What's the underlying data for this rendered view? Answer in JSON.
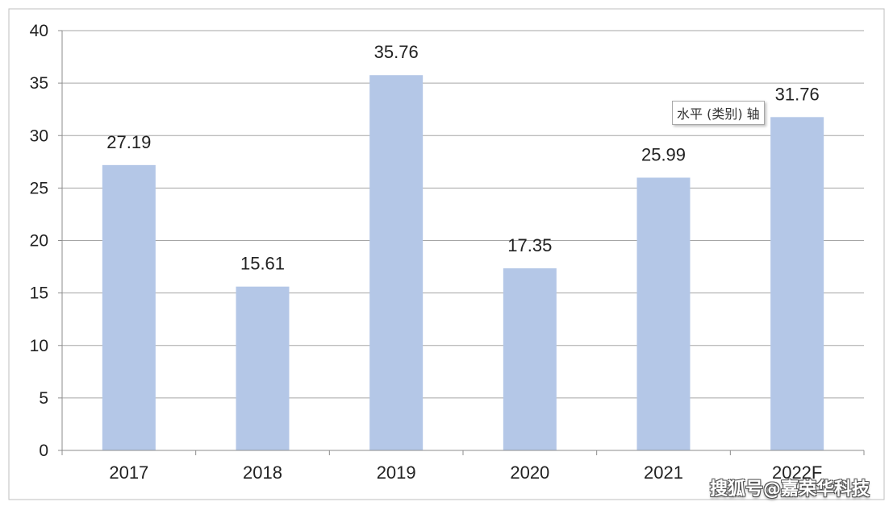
{
  "chart_data": {
    "type": "bar",
    "categories": [
      "2017",
      "2018",
      "2019",
      "2020",
      "2021",
      "2022F"
    ],
    "values": [
      27.19,
      15.61,
      35.76,
      17.35,
      25.99,
      31.76
    ],
    "data_labels": [
      "27.19",
      "15.61",
      "35.76",
      "17.35",
      "25.99",
      "31.76"
    ],
    "y_ticks": [
      "0",
      "5",
      "10",
      "15",
      "20",
      "25",
      "30",
      "35",
      "40"
    ],
    "ylim": [
      0,
      40
    ],
    "y_step": 5,
    "grid": true,
    "legend": "none",
    "bar_color": "#b4c7e7",
    "grid_color": "#a6a6a6",
    "axis_color": "#8c8c8c",
    "text_color": "#222222"
  },
  "tooltip": {
    "text": "水平 (类别) 轴"
  },
  "watermark": {
    "text": "搜狐号@嘉荣华科技"
  }
}
